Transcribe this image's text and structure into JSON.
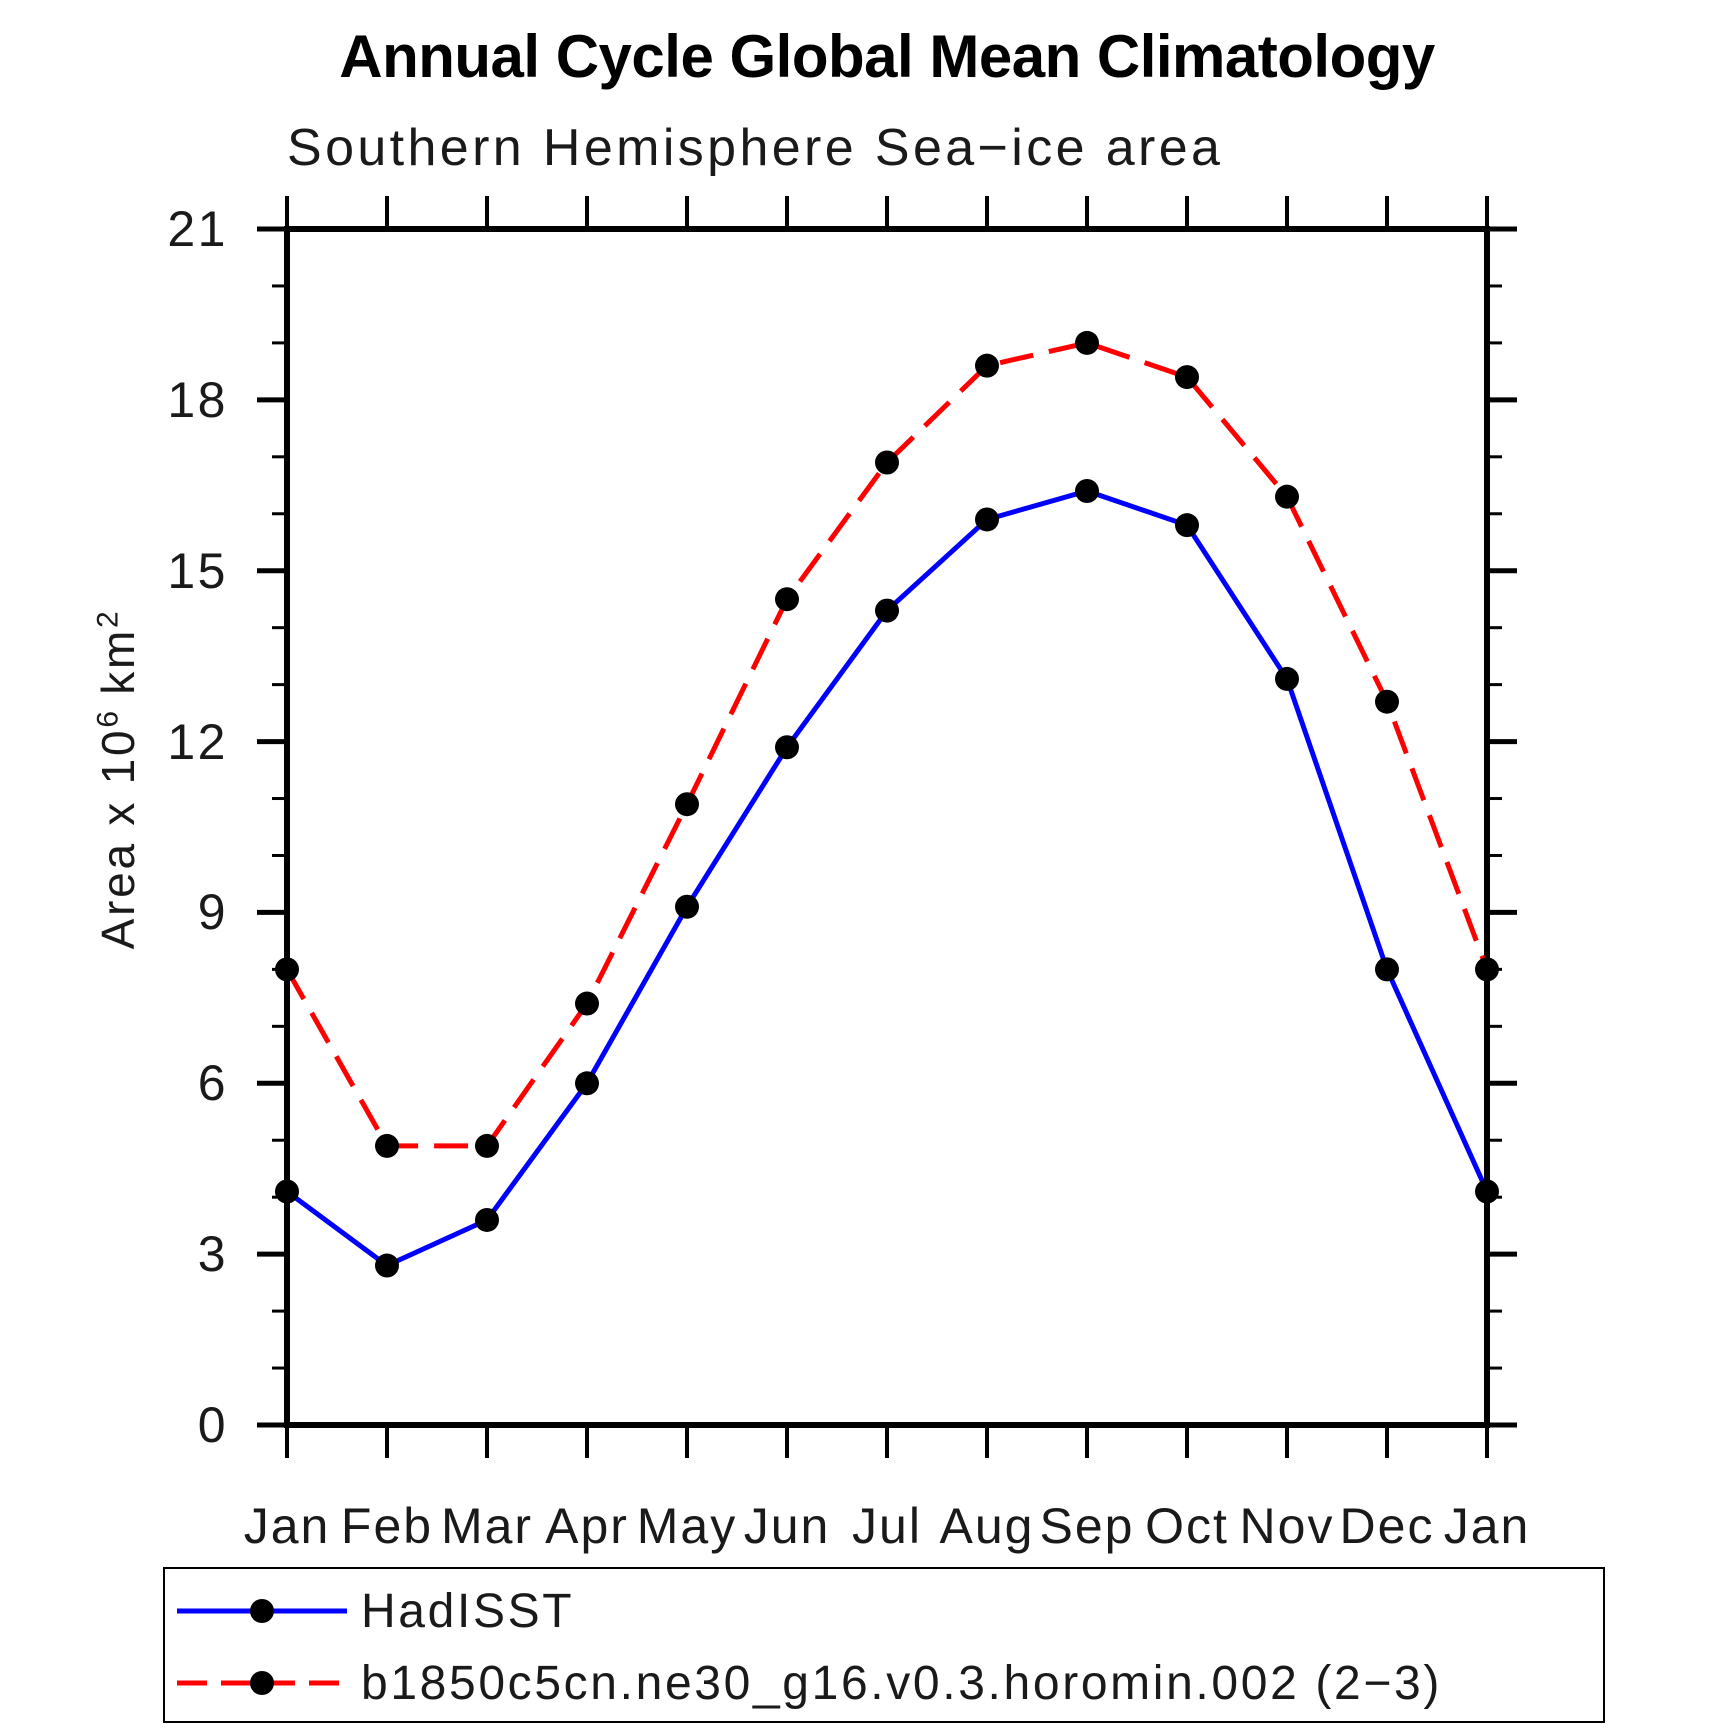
{
  "chart_data": {
    "type": "line",
    "title": "Annual Cycle Global Mean Climatology",
    "subtitle": "Southern Hemisphere Sea−ice area",
    "ylabel": "Area x 10^6 km^2",
    "ylabel_parts": {
      "base": "Area x 10",
      "exp": "6",
      "unit": " km",
      "unit_exp": "2"
    },
    "categories": [
      "Jan",
      "Feb",
      "Mar",
      "Apr",
      "May",
      "Jun",
      "Jul",
      "Aug",
      "Sep",
      "Oct",
      "Nov",
      "Dec",
      "Jan"
    ],
    "ylim": [
      0,
      21
    ],
    "ytick_major": [
      0,
      3,
      6,
      9,
      12,
      15,
      18,
      21
    ],
    "ytick_minor_step": 1,
    "grid": false,
    "legend_position": "bottom",
    "axis_color": "#000000",
    "marker_radius_px": 12,
    "series": [
      {
        "name": "HadISST",
        "color": "#0000ff",
        "style": "solid",
        "marker": "circle",
        "marker_color": "#000000",
        "values": [
          4.1,
          2.8,
          3.6,
          6.0,
          9.1,
          11.9,
          14.3,
          15.9,
          16.4,
          15.8,
          13.1,
          8.0,
          4.1
        ]
      },
      {
        "name": "b1850c5cn.ne30_g16.v0.3.horomin.002 (2−3)",
        "color": "#ff0000",
        "style": "dashed",
        "marker": "circle",
        "marker_color": "#000000",
        "values": [
          8.0,
          4.9,
          4.9,
          7.4,
          10.9,
          14.5,
          16.9,
          18.6,
          19.0,
          18.4,
          16.3,
          12.7,
          8.0
        ]
      }
    ]
  }
}
